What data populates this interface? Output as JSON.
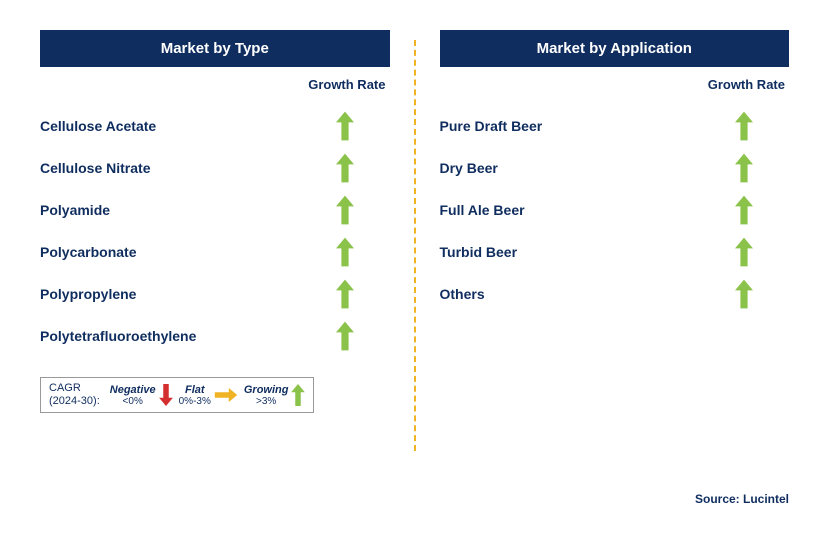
{
  "colors": {
    "header_bg": "#0f2d5f",
    "header_text": "#ffffff",
    "label_text": "#0f2d5f",
    "arrow_green": "#8bc34a",
    "arrow_red": "#d32f2f",
    "arrow_yellow": "#f0b323",
    "divider": "#f0b323",
    "body_text": "#0f2d5f"
  },
  "left": {
    "title": "Market by Type",
    "growth_header": "Growth Rate",
    "rows": [
      {
        "label": "Cellulose Acetate",
        "trend": "growing"
      },
      {
        "label": "Cellulose Nitrate",
        "trend": "growing"
      },
      {
        "label": "Polyamide",
        "trend": "growing"
      },
      {
        "label": "Polycarbonate",
        "trend": "growing"
      },
      {
        "label": "Polypropylene",
        "trend": "growing"
      },
      {
        "label": "Polytetrafluoroethylene",
        "trend": "growing"
      }
    ]
  },
  "right": {
    "title": "Market by Application",
    "growth_header": "Growth Rate",
    "rows": [
      {
        "label": "Pure Draft Beer",
        "trend": "growing"
      },
      {
        "label": "Dry Beer",
        "trend": "growing"
      },
      {
        "label": "Full Ale Beer",
        "trend": "growing"
      },
      {
        "label": "Turbid Beer",
        "trend": "growing"
      },
      {
        "label": "Others",
        "trend": "growing"
      }
    ]
  },
  "legend": {
    "cagr_line1": "CAGR",
    "cagr_line2": "(2024-30):",
    "items": [
      {
        "label": "Negative",
        "sub": "<0%",
        "trend": "negative"
      },
      {
        "label": "Flat",
        "sub": "0%-3%",
        "trend": "flat"
      },
      {
        "label": "Growing",
        "sub": ">3%",
        "trend": "growing"
      }
    ]
  },
  "source": "Source: Lucintel"
}
